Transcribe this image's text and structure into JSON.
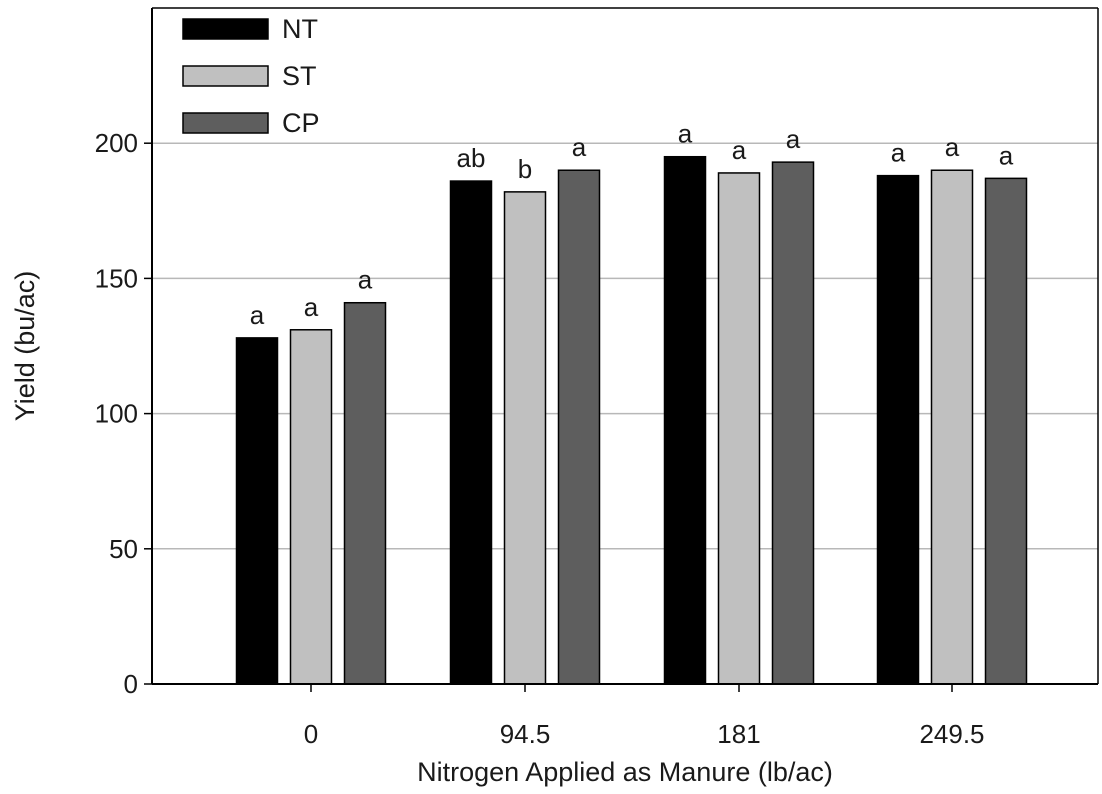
{
  "chart_data": {
    "type": "bar",
    "title": "",
    "xlabel": "Nitrogen Applied as Manure (lb/ac)",
    "ylabel": "Yield (bu/ac)",
    "categories": [
      "0",
      "94.5",
      "181",
      "249.5"
    ],
    "ylim": [
      0,
      250
    ],
    "yticks": [
      "0",
      "50",
      "100",
      "150",
      "200"
    ],
    "grid": "horizontal",
    "legend_position": "top-left",
    "series": [
      {
        "name": "NT",
        "color": "#000000",
        "values": [
          128,
          186,
          195,
          188
        ],
        "labels": [
          "a",
          "ab",
          "a",
          "a"
        ]
      },
      {
        "name": "ST",
        "color": "#c0c0c0",
        "values": [
          131,
          182,
          189,
          190
        ],
        "labels": [
          "a",
          "b",
          "a",
          "a"
        ]
      },
      {
        "name": "CP",
        "color": "#5e5e5e",
        "values": [
          141,
          190,
          193,
          187
        ],
        "labels": [
          "a",
          "a",
          "a",
          "a"
        ]
      }
    ]
  }
}
